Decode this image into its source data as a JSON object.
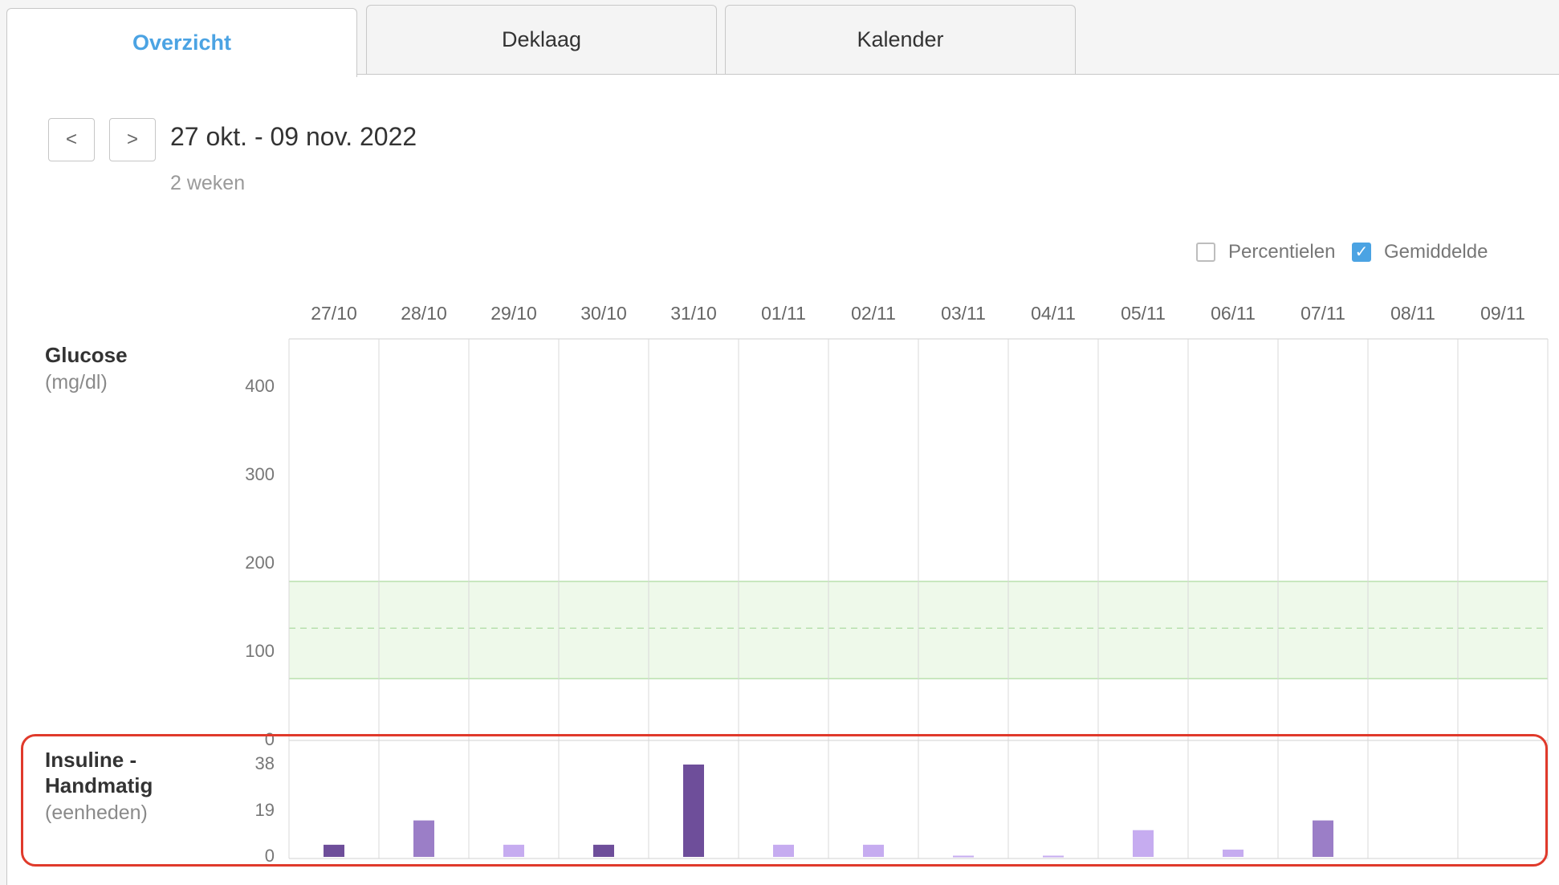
{
  "tabs": [
    {
      "label": "Overzicht",
      "active": true
    },
    {
      "label": "Deklaag",
      "active": false
    },
    {
      "label": "Kalender",
      "active": false
    }
  ],
  "nav": {
    "prev_label": "<",
    "next_label": ">"
  },
  "range": {
    "title": "27 okt. - 09 nov. 2022",
    "subtitle": "2 weken"
  },
  "legend": {
    "percentiles": {
      "label": "Percentielen",
      "checked": false
    },
    "average": {
      "label": "Gemiddelde",
      "checked": true,
      "check_glyph": "✓"
    }
  },
  "glucose": {
    "label": "Glucose",
    "unit": "(mg/dl)",
    "y_ticks": [
      "400",
      "300",
      "200",
      "100",
      "0"
    ],
    "target_range_color": "#eef9ea",
    "target_line_color": "#b8e0ad"
  },
  "insulin": {
    "label_line1": "Insuline -",
    "label_line2": "Handmatig",
    "unit": "(eenheden)",
    "y_ticks": [
      "38",
      "19",
      "0"
    ]
  },
  "colors": {
    "accent": "#4ba3e3",
    "bar_dark": "#6e4e9a",
    "bar_mid": "#9b7ec7",
    "bar_light": "#c6acf0",
    "highlight": "#e03a2b"
  },
  "chart_data": {
    "type": "bar",
    "categories": [
      "27/10",
      "28/10",
      "29/10",
      "30/10",
      "31/10",
      "01/11",
      "02/11",
      "03/11",
      "04/11",
      "05/11",
      "06/11",
      "07/11",
      "08/11",
      "09/11"
    ],
    "glucose_ylim": [
      0,
      400
    ],
    "glucose_target_range": [
      70,
      180
    ],
    "glucose_target_mid": 127,
    "insulin_ylim": [
      0,
      38
    ],
    "series": [
      {
        "values": [
          5,
          15,
          5,
          5,
          38,
          5,
          5,
          0.5,
          0.5,
          11,
          3,
          15,
          null,
          null
        ],
        "shades": [
          "dark",
          "mid",
          "light",
          "dark",
          "dark",
          "light",
          "light",
          "light",
          "light",
          "light",
          "light",
          "mid",
          null,
          null
        ]
      }
    ],
    "grid": true
  }
}
